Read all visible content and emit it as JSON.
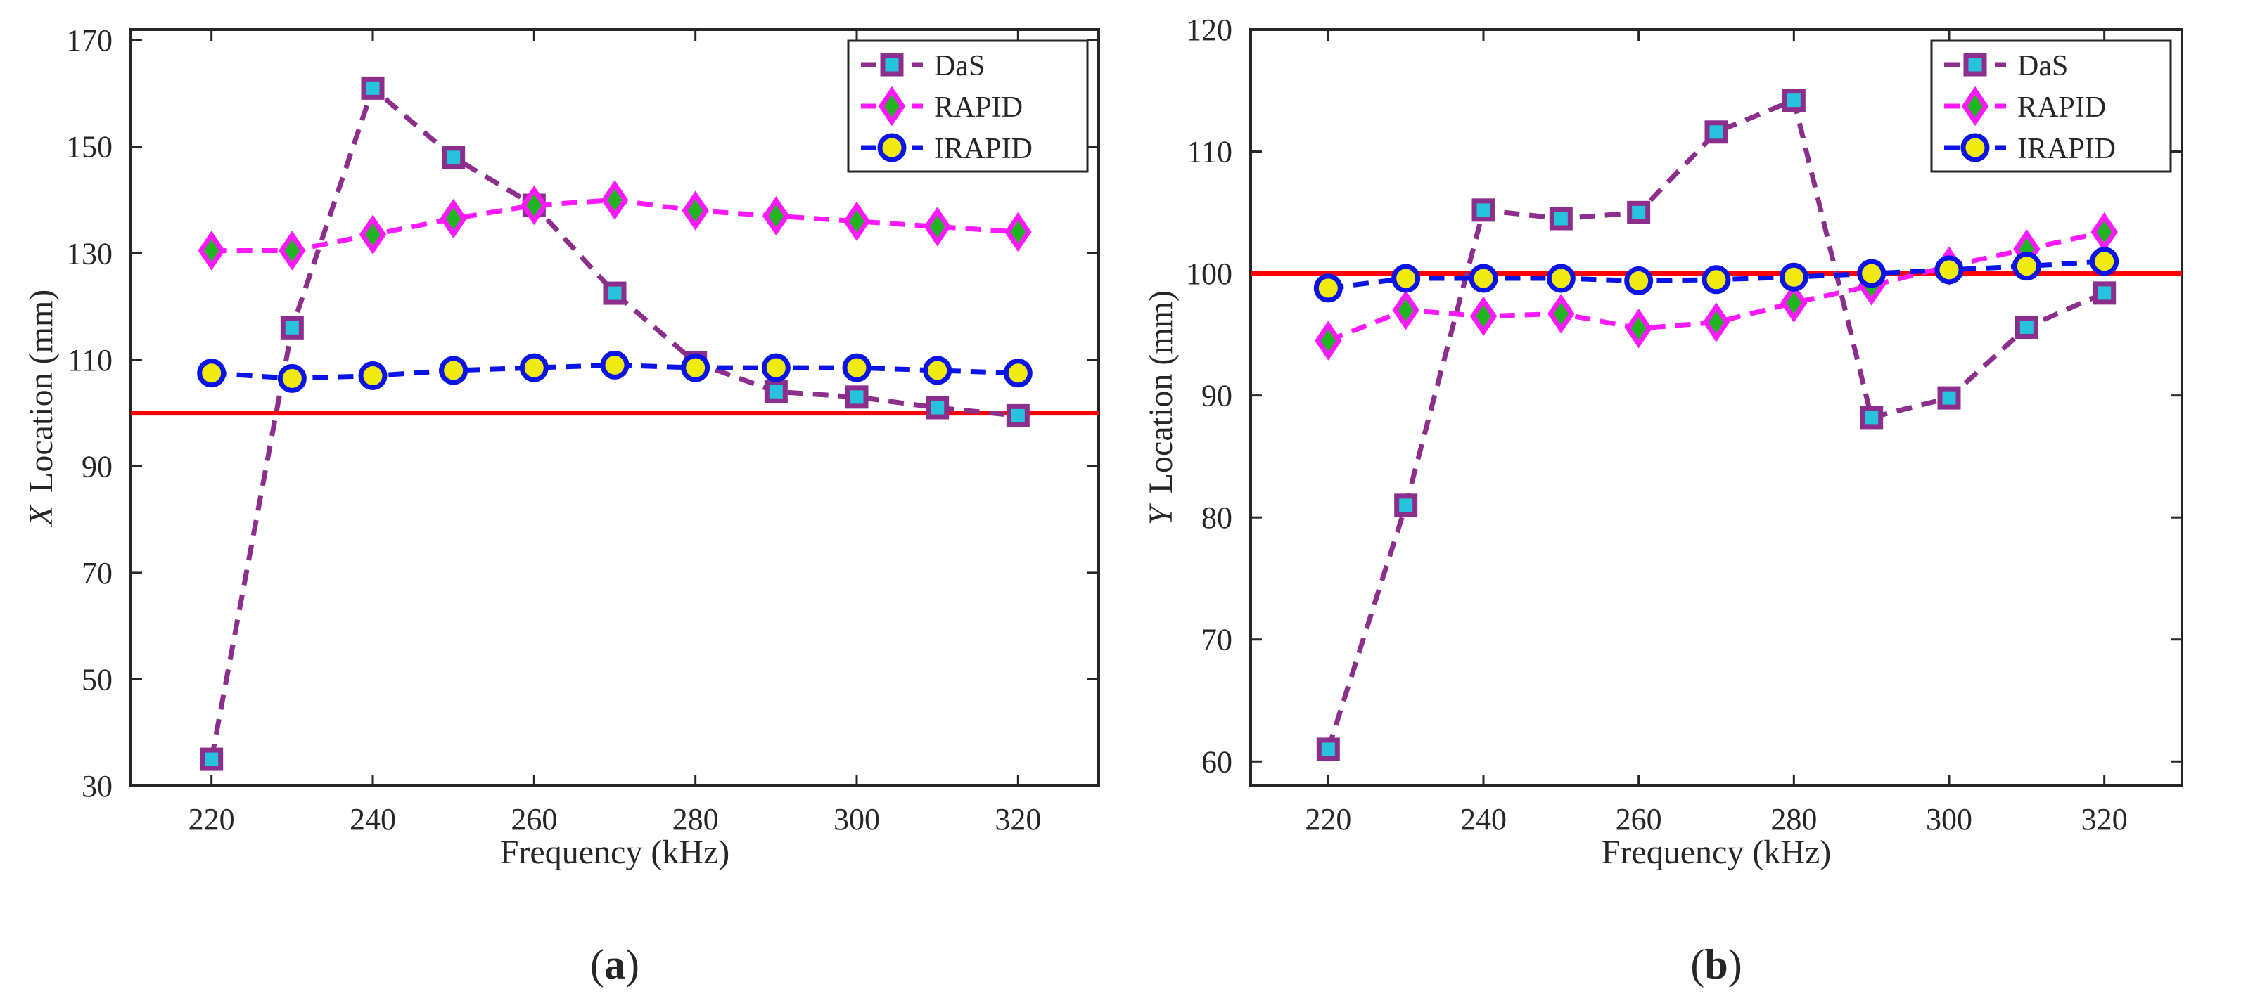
{
  "colors": {
    "das_line": "#8c2f8c",
    "das_marker_fill": "#27c2de",
    "das_marker_edge": "#8c2f8c",
    "rapid_line": "#ff19ff",
    "rapid_marker_fill": "#1fb51f",
    "rapid_marker_edge": "#ff19ff",
    "irapid_line": "#0a14e6",
    "irapid_marker_fill": "#f0ea0f",
    "irapid_marker_edge": "#0a14e6",
    "reference": "#ff0000",
    "axes": "#262626"
  },
  "chart_data": [
    {
      "type": "line",
      "panel_label": "a",
      "xlabel": "Frequency (kHz)",
      "ylabel_var": "X",
      "ylabel_rest": "Location (mm)",
      "xlim": [
        210,
        330
      ],
      "ylim": [
        30,
        172
      ],
      "xticks": [
        220,
        240,
        260,
        280,
        300,
        320
      ],
      "yticks": [
        30,
        50,
        70,
        90,
        110,
        130,
        150,
        170
      ],
      "grid": false,
      "legend_position": "top-right",
      "x": [
        220,
        230,
        240,
        250,
        260,
        270,
        280,
        290,
        300,
        310,
        320
      ],
      "reference_line": 100,
      "series": [
        {
          "name": "DaS",
          "marker": "square",
          "values": [
            35,
            116,
            161,
            148,
            139,
            122.5,
            109.5,
            104,
            103,
            101,
            99.5
          ]
        },
        {
          "name": "RAPID",
          "marker": "diamond",
          "values": [
            130.5,
            130.5,
            133.5,
            136.5,
            139,
            140,
            138,
            137,
            136,
            135,
            134
          ]
        },
        {
          "name": "IRAPID",
          "marker": "circle",
          "values": [
            107.5,
            106.5,
            107,
            108,
            108.5,
            109,
            108.5,
            108.5,
            108.5,
            108,
            107.5
          ]
        }
      ]
    },
    {
      "type": "line",
      "panel_label": "b",
      "xlabel": "Frequency (kHz)",
      "ylabel_var": "Y",
      "ylabel_rest": "Location (mm)",
      "xlim": [
        210,
        330
      ],
      "ylim": [
        58,
        120
      ],
      "xticks": [
        220,
        240,
        260,
        280,
        300,
        320
      ],
      "yticks": [
        60,
        70,
        80,
        90,
        100,
        110,
        120
      ],
      "grid": false,
      "legend_position": "top-right",
      "x": [
        220,
        230,
        240,
        250,
        260,
        270,
        280,
        290,
        300,
        310,
        320
      ],
      "reference_line": 100,
      "series": [
        {
          "name": "DaS",
          "marker": "square",
          "values": [
            61,
            81,
            105.2,
            104.5,
            105,
            111.6,
            114.2,
            88.2,
            89.8,
            95.6,
            98.4
          ]
        },
        {
          "name": "RAPID",
          "marker": "diamond",
          "values": [
            94.5,
            97,
            96.5,
            96.7,
            95.5,
            96,
            97.6,
            99,
            100.6,
            102,
            103.4
          ]
        },
        {
          "name": "IRAPID",
          "marker": "circle",
          "values": [
            98.8,
            99.6,
            99.6,
            99.6,
            99.4,
            99.5,
            99.7,
            100,
            100.3,
            100.6,
            101
          ]
        }
      ]
    }
  ]
}
